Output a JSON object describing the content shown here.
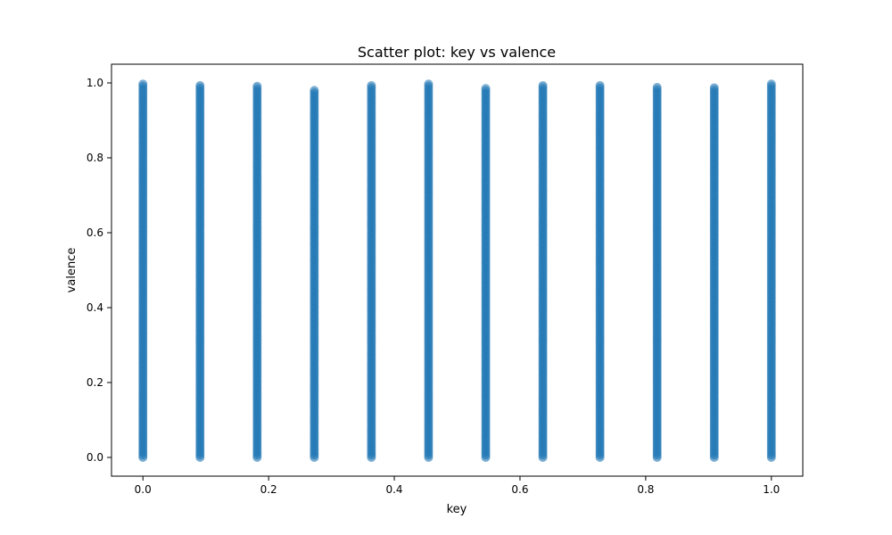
{
  "chart_data": {
    "type": "scatter",
    "title": "Scatter plot: key vs valence",
    "xlabel": "key",
    "ylabel": "valence",
    "xlim": [
      -0.05,
      1.05
    ],
    "ylim": [
      -0.05,
      1.05
    ],
    "xticks": [
      0.0,
      0.2,
      0.4,
      0.6,
      0.8,
      1.0
    ],
    "xtick_labels": [
      "0.0",
      "0.2",
      "0.4",
      "0.6",
      "0.8",
      "1.0"
    ],
    "yticks": [
      0.0,
      0.2,
      0.4,
      0.6,
      0.8,
      1.0
    ],
    "ytick_labels": [
      "0.0",
      "0.2",
      "0.4",
      "0.6",
      "0.8",
      "1.0"
    ],
    "grid": false,
    "marker_color": "#1f77b4",
    "marker_alpha": 0.6,
    "series": [
      {
        "x_values": [
          0.0,
          0.0909,
          0.1818,
          0.2727,
          0.3636,
          0.4545,
          0.5455,
          0.6364,
          0.7273,
          0.8182,
          0.9091,
          1.0
        ],
        "valence_min": [
          0.0,
          0.0,
          0.0,
          0.0,
          0.0,
          0.0,
          0.0,
          0.0,
          0.0,
          0.0,
          0.0,
          0.0
        ],
        "valence_max": [
          0.997,
          0.993,
          0.991,
          0.98,
          0.993,
          0.997,
          0.985,
          0.993,
          0.993,
          0.988,
          0.987,
          0.997
        ]
      }
    ]
  }
}
